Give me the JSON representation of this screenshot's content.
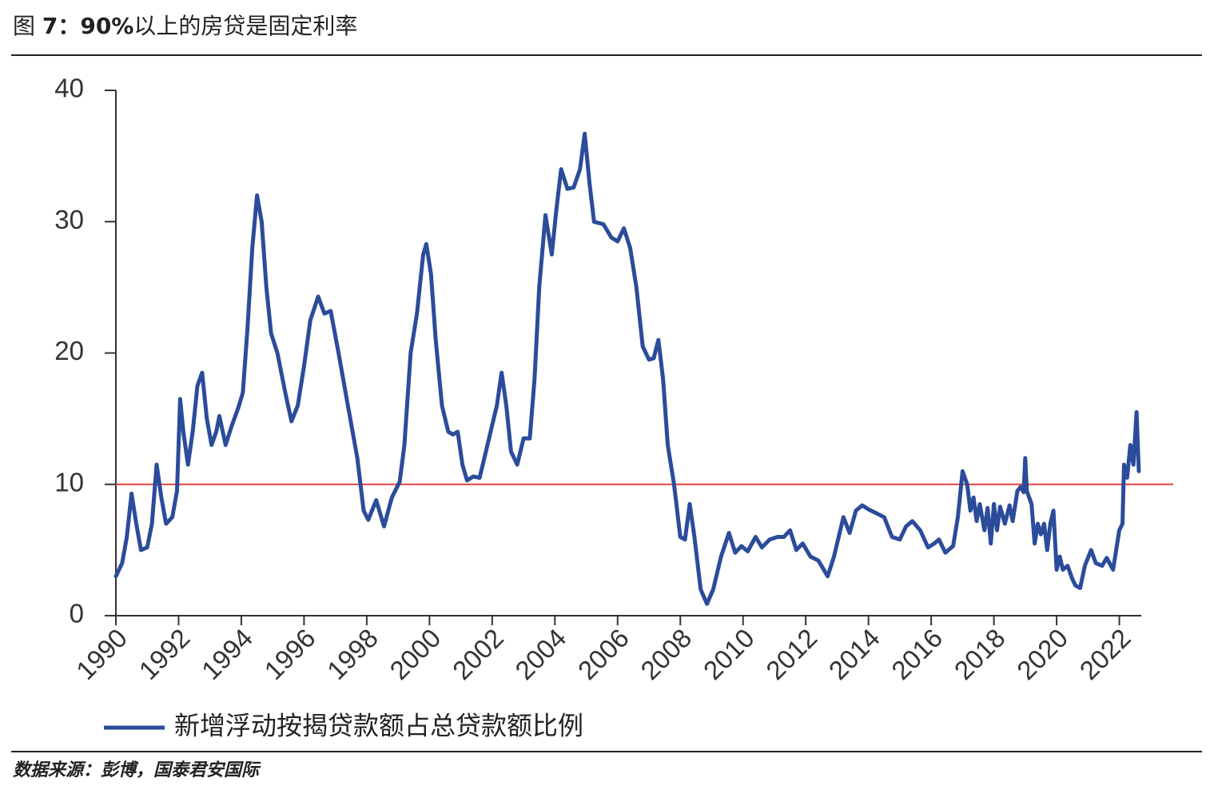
{
  "chart_data": {
    "type": "line",
    "title": [
      "图 ",
      "7：90%",
      "以上的房贷是固定利率"
    ],
    "source": "数据来源：彭博，国泰君安国际",
    "xlim": [
      1990,
      2022.7
    ],
    "ylim": [
      0,
      40
    ],
    "xticks": [
      1990,
      1992,
      1994,
      1996,
      1998,
      2000,
      2002,
      2004,
      2006,
      2008,
      2010,
      2012,
      2014,
      2016,
      2018,
      2020,
      2022
    ],
    "yticks": [
      0,
      10,
      20,
      30,
      40
    ],
    "reference_lines": [
      {
        "value": 10,
        "color": "#e8413c"
      }
    ],
    "series": [
      {
        "name": "新增浮动按揭贷款额占总贷款额比例",
        "color": "#2b4c9b",
        "x": [
          1990.0,
          1990.2,
          1990.35,
          1990.5,
          1990.65,
          1990.8,
          1991.0,
          1991.15,
          1991.3,
          1991.45,
          1991.6,
          1991.8,
          1991.95,
          1992.05,
          1992.15,
          1992.3,
          1992.45,
          1992.6,
          1992.75,
          1992.9,
          1993.05,
          1993.2,
          1993.3,
          1993.5,
          1993.7,
          1993.9,
          1994.05,
          1994.2,
          1994.35,
          1994.5,
          1994.65,
          1994.8,
          1994.95,
          1995.15,
          1995.4,
          1995.6,
          1995.8,
          1996.0,
          1996.2,
          1996.45,
          1996.65,
          1996.85,
          1997.1,
          1997.4,
          1997.7,
          1997.9,
          1998.05,
          1998.3,
          1998.55,
          1998.8,
          1999.05,
          1999.2,
          1999.4,
          1999.6,
          1999.8,
          1999.9,
          2000.05,
          2000.2,
          2000.4,
          2000.6,
          2000.75,
          2000.9,
          2001.05,
          2001.2,
          2001.4,
          2001.6,
          2001.8,
          2002.0,
          2002.15,
          2002.3,
          2002.45,
          2002.6,
          2002.8,
          2003.0,
          2003.2,
          2003.35,
          2003.5,
          2003.7,
          2003.9,
          2004.05,
          2004.2,
          2004.4,
          2004.6,
          2004.8,
          2004.95,
          2005.1,
          2005.25,
          2005.55,
          2005.8,
          2006.0,
          2006.2,
          2006.4,
          2006.6,
          2006.8,
          2007.0,
          2007.15,
          2007.3,
          2007.45,
          2007.6,
          2007.8,
          2008.0,
          2008.15,
          2008.3,
          2008.45,
          2008.65,
          2008.85,
          2009.05,
          2009.3,
          2009.55,
          2009.75,
          2009.95,
          2010.15,
          2010.4,
          2010.6,
          2010.85,
          2011.1,
          2011.3,
          2011.5,
          2011.7,
          2011.9,
          2012.15,
          2012.4,
          2012.7,
          2012.9,
          2013.2,
          2013.4,
          2013.6,
          2013.8,
          2014.0,
          2014.25,
          2014.5,
          2014.75,
          2015.0,
          2015.2,
          2015.4,
          2015.65,
          2015.9,
          2016.1,
          2016.25,
          2016.45,
          2016.7,
          2016.85,
          2017.0,
          2017.15,
          2017.25,
          2017.35,
          2017.45,
          2017.55,
          2017.7,
          2017.8,
          2017.9,
          2018.0,
          2018.1,
          2018.2,
          2018.35,
          2018.5,
          2018.6,
          2018.75,
          2018.85,
          2018.95,
          2019.0,
          2019.05,
          2019.2,
          2019.3,
          2019.4,
          2019.5,
          2019.6,
          2019.7,
          2019.8,
          2019.9,
          2020.0,
          2020.1,
          2020.2,
          2020.35,
          2020.5,
          2020.6,
          2020.75,
          2020.9,
          2021.1,
          2021.25,
          2021.45,
          2021.6,
          2021.8,
          2022.0,
          2022.1,
          2022.15,
          2022.25,
          2022.35,
          2022.45,
          2022.55,
          2022.62
        ],
        "values": [
          3.0,
          4.0,
          6,
          9.3,
          7,
          5,
          5.2,
          7,
          11.5,
          9,
          7,
          7.5,
          9.5,
          16.5,
          14,
          11.5,
          14,
          17.5,
          18.5,
          15,
          13,
          14,
          15.2,
          13,
          14.5,
          15.8,
          17,
          22,
          28,
          32,
          30,
          25,
          21.5,
          20,
          17,
          14.8,
          16,
          19,
          22.5,
          24.3,
          23,
          23.2,
          20,
          16,
          12,
          8,
          7.3,
          8.8,
          6.8,
          9,
          10.2,
          13,
          20,
          23,
          27.5,
          28.3,
          26,
          21,
          16,
          14,
          13.8,
          14,
          11.5,
          10.3,
          10.6,
          10.5,
          12.5,
          14.5,
          16,
          18.5,
          16,
          12.5,
          11.5,
          13.5,
          13.5,
          18,
          25,
          30.5,
          27.5,
          31,
          34,
          32.5,
          32.6,
          34,
          36.7,
          33,
          30,
          29.8,
          28.8,
          28.5,
          29.5,
          28,
          25,
          20.5,
          19.5,
          19.6,
          21,
          18,
          13,
          10,
          6,
          5.8,
          8.5,
          6,
          2,
          0.9,
          2,
          4.5,
          6.3,
          4.8,
          5.3,
          4.9,
          6,
          5.2,
          5.8,
          6,
          6,
          6.5,
          5,
          5.5,
          4.5,
          4.2,
          3,
          4.5,
          7.5,
          6.3,
          8,
          8.4,
          8.1,
          7.8,
          7.5,
          6,
          5.8,
          6.8,
          7.2,
          6.5,
          5.2,
          5.5,
          5.8,
          4.8,
          5.3,
          7.5,
          11,
          10,
          8,
          9,
          7.2,
          8.5,
          6.5,
          8.2,
          5.5,
          8.5,
          6.5,
          8.3,
          7,
          8.4,
          7.2,
          9.5,
          9.8,
          9.4,
          12,
          9.5,
          8.5,
          5.5,
          7,
          6.2,
          7,
          5,
          7,
          8,
          3.5,
          4.5,
          3.5,
          3.8,
          2.8,
          2.3,
          2.1,
          3.8,
          5,
          4,
          3.8,
          4.4,
          3.5,
          6.5,
          7,
          11.5,
          10.5,
          13,
          11.5,
          15.5,
          11
        ]
      }
    ]
  }
}
